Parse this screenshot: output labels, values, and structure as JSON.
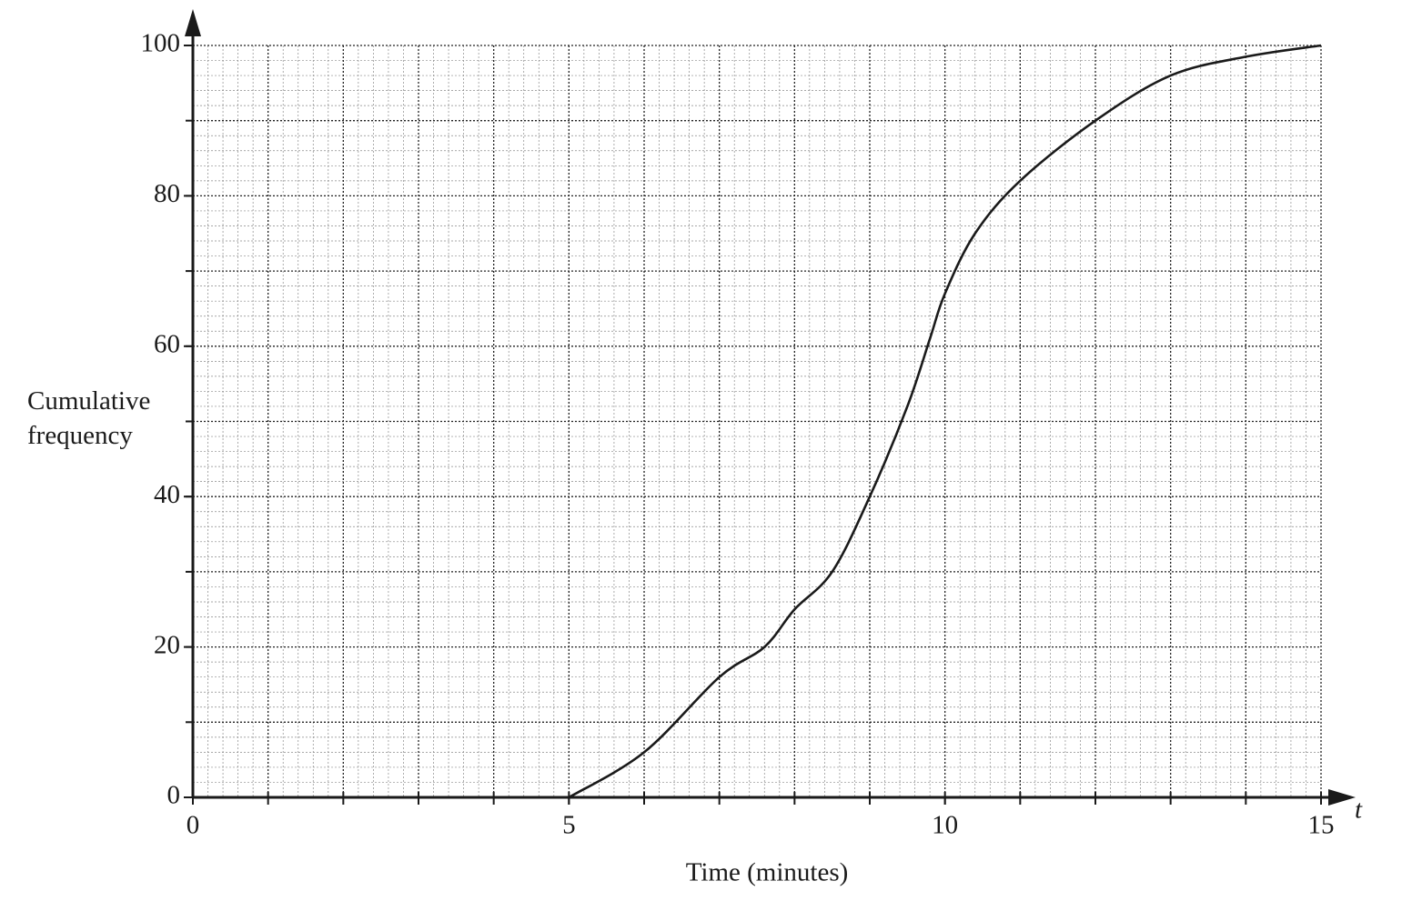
{
  "chart_data": {
    "type": "line",
    "xlabel": "Time (minutes)",
    "ylabel": "Cumulative frequency",
    "x_symbol": "t",
    "xlim": [
      0,
      15
    ],
    "xticks": [
      0,
      5,
      10,
      15
    ],
    "ylim": [
      0,
      100
    ],
    "yticks": [
      0,
      20,
      40,
      60,
      80,
      100
    ],
    "grid": true,
    "x_major_step": 1,
    "x_minor_step": 0.2,
    "y_major_step": 10,
    "y_minor_step": 2,
    "smooth": true,
    "series": [
      {
        "color": "#1a1a1a",
        "x": [
          5,
          6,
          7,
          7.6,
          8,
          8.5,
          9,
          9.5,
          9.8,
          10,
          10.4,
          11,
          12,
          13,
          14,
          15
        ],
        "values": [
          0,
          6,
          16,
          20,
          25,
          30,
          40,
          52,
          61,
          67,
          75,
          82,
          90,
          96,
          98.5,
          100
        ]
      }
    ]
  }
}
